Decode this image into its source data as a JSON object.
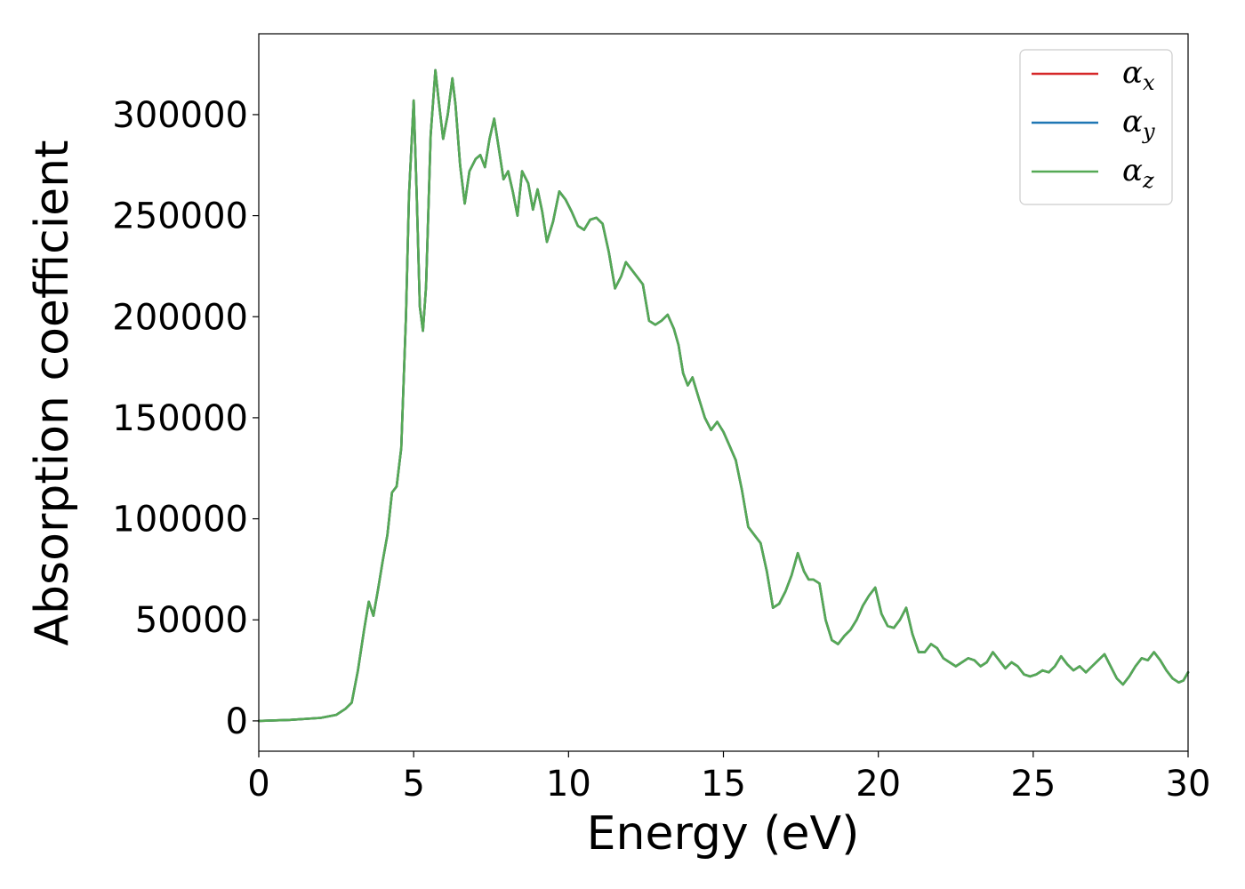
{
  "chart_data": {
    "type": "line",
    "title": "",
    "xlabel": "Energy (eV)",
    "ylabel": "Absorption coefficient",
    "xlim": [
      0,
      30
    ],
    "ylim": [
      -15000,
      340000
    ],
    "xticks": [
      0,
      5,
      10,
      15,
      20,
      25,
      30
    ],
    "yticks": [
      0,
      50000,
      100000,
      150000,
      200000,
      250000,
      300000
    ],
    "grid": false,
    "legend": "top-right",
    "series": [
      {
        "name": "α",
        "sub": "x",
        "color": "#d62728",
        "ref": "alpha_z"
      },
      {
        "name": "α",
        "sub": "y",
        "color": "#1f77b4",
        "ref": "alpha_z"
      },
      {
        "name": "α",
        "sub": "z",
        "color": "#55a955",
        "x": [
          0,
          1,
          2,
          2.5,
          2.8,
          3.0,
          3.2,
          3.4,
          3.55,
          3.7,
          3.85,
          4.0,
          4.15,
          4.3,
          4.45,
          4.6,
          4.75,
          4.85,
          5.0,
          5.1,
          5.2,
          5.3,
          5.4,
          5.55,
          5.7,
          5.8,
          5.95,
          6.1,
          6.25,
          6.35,
          6.5,
          6.65,
          6.8,
          7.0,
          7.15,
          7.3,
          7.45,
          7.6,
          7.75,
          7.9,
          8.05,
          8.2,
          8.35,
          8.5,
          8.7,
          8.85,
          9.0,
          9.15,
          9.3,
          9.5,
          9.7,
          9.9,
          10.1,
          10.3,
          10.5,
          10.7,
          10.9,
          11.1,
          11.3,
          11.5,
          11.7,
          11.85,
          12.0,
          12.2,
          12.4,
          12.6,
          12.8,
          13.0,
          13.2,
          13.4,
          13.55,
          13.7,
          13.85,
          14.0,
          14.2,
          14.4,
          14.6,
          14.8,
          15.0,
          15.2,
          15.4,
          15.6,
          15.8,
          16.0,
          16.2,
          16.4,
          16.6,
          16.8,
          17.0,
          17.2,
          17.4,
          17.6,
          17.75,
          17.9,
          18.1,
          18.3,
          18.5,
          18.7,
          18.9,
          19.1,
          19.3,
          19.5,
          19.7,
          19.9,
          20.1,
          20.3,
          20.5,
          20.7,
          20.9,
          21.1,
          21.3,
          21.5,
          21.7,
          21.9,
          22.1,
          22.3,
          22.5,
          22.7,
          22.9,
          23.1,
          23.3,
          23.5,
          23.7,
          23.9,
          24.1,
          24.3,
          24.5,
          24.7,
          24.9,
          25.1,
          25.3,
          25.5,
          25.7,
          25.9,
          26.1,
          26.3,
          26.5,
          26.7,
          26.9,
          27.1,
          27.3,
          27.5,
          27.7,
          27.9,
          28.1,
          28.3,
          28.5,
          28.7,
          28.9,
          29.1,
          29.3,
          29.5,
          29.7,
          29.85,
          30.0
        ],
        "y": [
          0,
          500,
          1500,
          3000,
          6000,
          9000,
          25000,
          45000,
          59000,
          52000,
          65000,
          79000,
          92000,
          113000,
          116000,
          135000,
          200000,
          260000,
          307000,
          260000,
          205000,
          193000,
          215000,
          290000,
          322000,
          308000,
          288000,
          300000,
          318000,
          305000,
          275000,
          256000,
          272000,
          278000,
          280000,
          274000,
          288000,
          298000,
          283000,
          268000,
          272000,
          262000,
          250000,
          272000,
          266000,
          253000,
          263000,
          252000,
          237000,
          247000,
          262000,
          258000,
          252000,
          245000,
          243000,
          248000,
          249000,
          246000,
          232000,
          214000,
          220000,
          227000,
          224000,
          220000,
          216000,
          198000,
          196000,
          198000,
          201000,
          194000,
          186000,
          172000,
          166000,
          170000,
          160000,
          150000,
          144000,
          148000,
          143000,
          136000,
          129000,
          114000,
          96000,
          92000,
          88000,
          74000,
          56000,
          58000,
          64000,
          72000,
          83000,
          74000,
          70000,
          70000,
          68000,
          50000,
          40000,
          38000,
          42000,
          45000,
          50000,
          57000,
          62000,
          66000,
          53000,
          47000,
          46000,
          50000,
          56000,
          43000,
          34000,
          34000,
          38000,
          36000,
          31000,
          29000,
          27000,
          29000,
          31000,
          30000,
          27000,
          29000,
          34000,
          30000,
          26000,
          29000,
          27000,
          23000,
          22000,
          23000,
          25000,
          24000,
          27000,
          32000,
          28000,
          25000,
          27000,
          24000,
          27000,
          30000,
          33000,
          27000,
          21000,
          18000,
          22000,
          27000,
          31000,
          30000,
          34000,
          30000,
          25000,
          21000,
          19000,
          20000,
          24000
        ]
      }
    ]
  }
}
